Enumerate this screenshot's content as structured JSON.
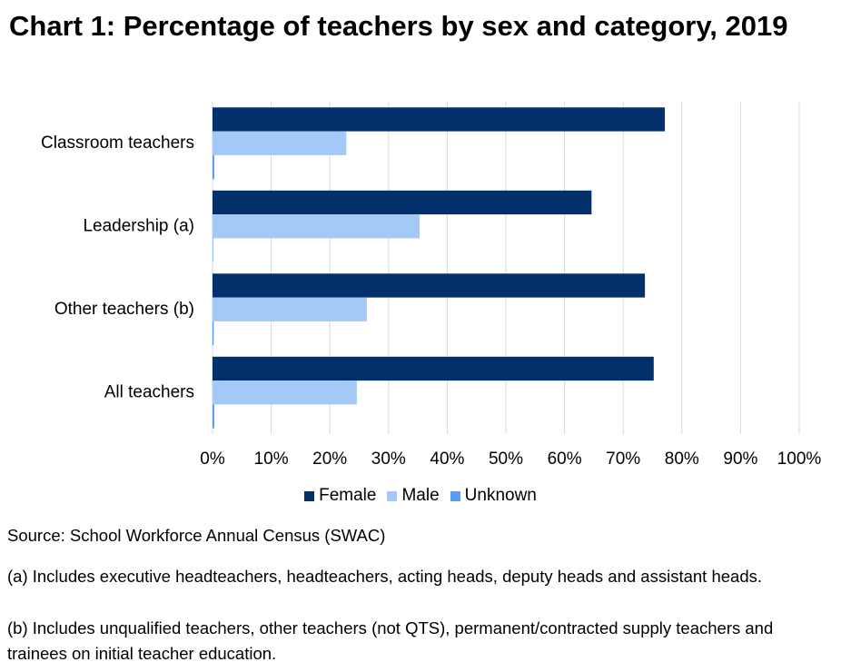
{
  "chart_data": {
    "type": "hbar",
    "title": "Chart 1: Percentage of teachers by sex and category, 2019",
    "categories": [
      "Classroom teachers",
      "Leadership (a)",
      "Other teachers (b)",
      "All teachers"
    ],
    "series": [
      {
        "name": "Female",
        "color": "#032f6b",
        "values": [
          77.1,
          64.6,
          73.7,
          75.2
        ]
      },
      {
        "name": "Male",
        "color": "#a5c9f7",
        "values": [
          22.8,
          35.3,
          26.3,
          24.6
        ]
      },
      {
        "name": "Unknown",
        "color": "#5b9cf0",
        "values": [
          0.3,
          0.1,
          0.2,
          0.3
        ]
      }
    ],
    "xlim": [
      0,
      100
    ],
    "xticks": [
      {
        "value": 0,
        "label": "0%"
      },
      {
        "value": 10,
        "label": "10%"
      },
      {
        "value": 20,
        "label": "20%"
      },
      {
        "value": 30,
        "label": "30%"
      },
      {
        "value": 40,
        "label": "40%"
      },
      {
        "value": 50,
        "label": "50%"
      },
      {
        "value": 60,
        "label": "60%"
      },
      {
        "value": 70,
        "label": "70%"
      },
      {
        "value": 80,
        "label": "80%"
      },
      {
        "value": 90,
        "label": "90%"
      },
      {
        "value": 100,
        "label": "100%"
      }
    ],
    "grid": true,
    "legend": "bottom",
    "source": "Source: School Workforce Annual Census (SWAC)",
    "notes": [
      "(a) Includes executive headteachers, headteachers, acting heads, deputy heads and assistant heads.",
      "(b) Includes unqualified teachers, other teachers (not QTS), permanent/contracted supply teachers and trainees on initial teacher education."
    ]
  }
}
